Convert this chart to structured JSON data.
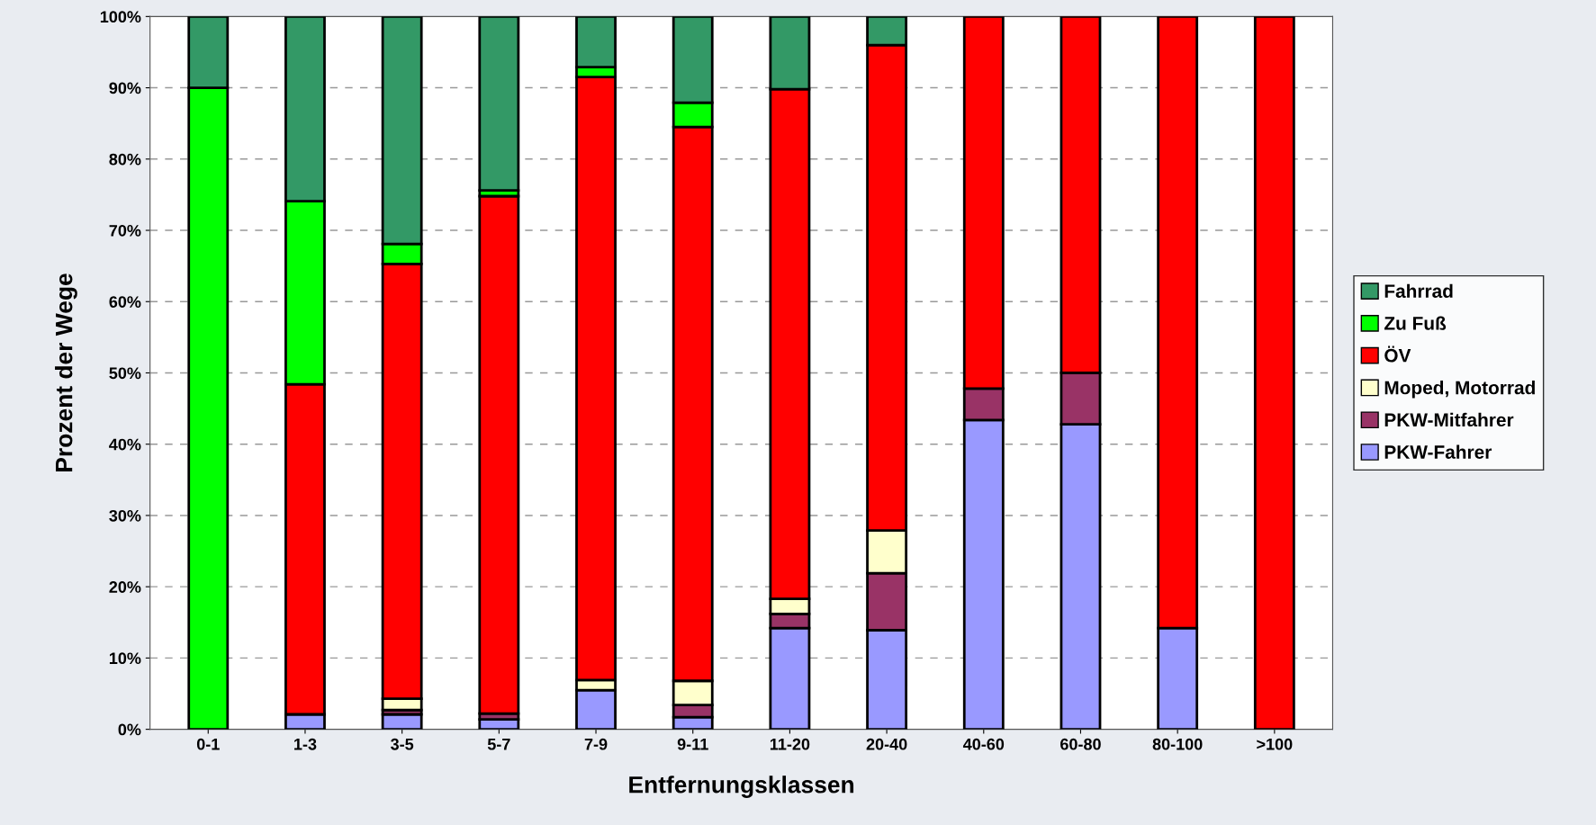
{
  "chart_data": {
    "type": "bar",
    "stacked": true,
    "xlabel": "Entfernungsklassen",
    "ylabel": "Prozent der Wege",
    "categories": [
      "0-1",
      "1-3",
      "3-5",
      "5-7",
      "7-9",
      "9-11",
      "11-20",
      "20-40",
      "40-60",
      "60-80",
      "80-100",
      ">100"
    ],
    "series": [
      {
        "name": "PKW-Fahrer",
        "color": "#9999ff",
        "values": [
          null,
          2.1,
          2.1,
          1.4,
          5.5,
          1.7,
          14.2,
          13.9,
          43.4,
          42.8,
          14.2,
          null
        ]
      },
      {
        "name": "PKW-Mitfahrer",
        "color": "#993366",
        "values": [
          null,
          null,
          0.6,
          0.8,
          null,
          1.7,
          2.0,
          8.0,
          4.4,
          7.2,
          null,
          null
        ]
      },
      {
        "name": "Moped, Motorrad",
        "color": "#ffffcc",
        "values": [
          null,
          null,
          1.6,
          null,
          1.4,
          3.4,
          2.1,
          6.0,
          null,
          null,
          null,
          null
        ]
      },
      {
        "name": "ÖV",
        "color": "#ff0000",
        "values": [
          null,
          46.3,
          61.0,
          72.6,
          84.6,
          77.7,
          71.5,
          68.1,
          52.2,
          50.0,
          85.8,
          100
        ]
      },
      {
        "name": "Zu Fuß",
        "color": "#00ff00",
        "values": [
          90,
          25.7,
          2.8,
          0.8,
          1.4,
          3.4,
          null,
          null,
          null,
          null,
          null,
          null
        ]
      },
      {
        "name": "Fahrrad",
        "color": "#339966",
        "values": [
          10,
          25.9,
          31.9,
          24.4,
          7.1,
          12.1,
          10.2,
          4.0,
          null,
          null,
          null,
          null
        ]
      }
    ],
    "ylim": [
      0,
      100
    ],
    "yticks": [
      {
        "value": 0,
        "label": "0%"
      },
      {
        "value": 10,
        "label": "10%"
      },
      {
        "value": 20,
        "label": "20%"
      },
      {
        "value": 30,
        "label": "30%"
      },
      {
        "value": 40,
        "label": "40%"
      },
      {
        "value": 50,
        "label": "50%"
      },
      {
        "value": 60,
        "label": "60%"
      },
      {
        "value": 70,
        "label": "70%"
      },
      {
        "value": 80,
        "label": "80%"
      },
      {
        "value": 90,
        "label": "90%"
      },
      {
        "value": 100,
        "label": "100%"
      }
    ],
    "grid": "y",
    "legend": "right"
  }
}
